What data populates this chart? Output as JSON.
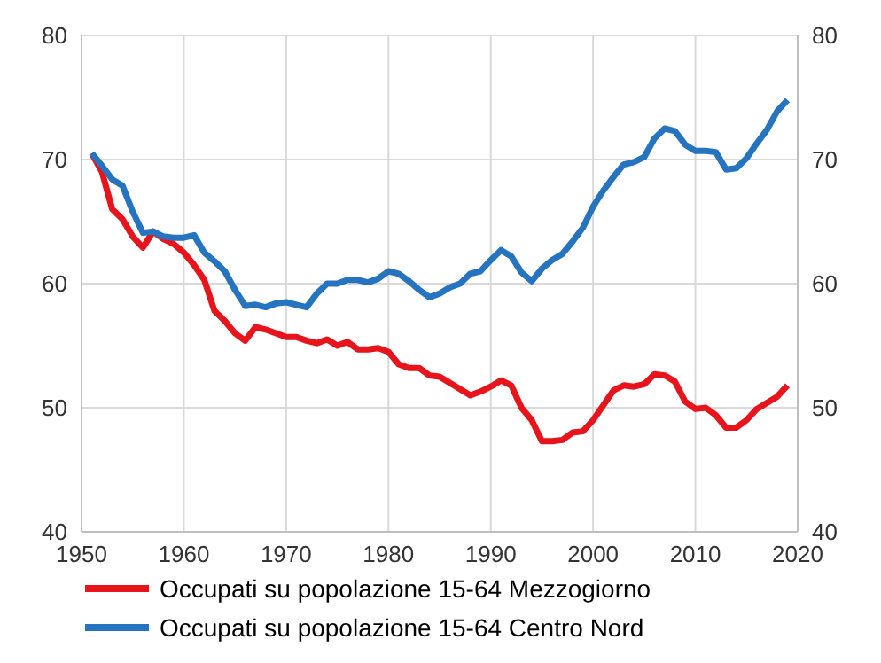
{
  "chart_data": {
    "type": "line",
    "x": [
      1951,
      1952,
      1953,
      1954,
      1955,
      1956,
      1957,
      1958,
      1959,
      1960,
      1961,
      1962,
      1963,
      1964,
      1965,
      1966,
      1967,
      1968,
      1969,
      1970,
      1971,
      1972,
      1973,
      1974,
      1975,
      1976,
      1977,
      1978,
      1979,
      1980,
      1981,
      1982,
      1983,
      1984,
      1985,
      1986,
      1987,
      1988,
      1989,
      1990,
      1991,
      1992,
      1993,
      1994,
      1995,
      1996,
      1997,
      1998,
      1999,
      2000,
      2001,
      2002,
      2003,
      2004,
      2005,
      2006,
      2007,
      2008,
      2009,
      2010,
      2011,
      2012,
      2013,
      2014,
      2015,
      2016,
      2017,
      2018,
      2019
    ],
    "series": [
      {
        "name": "Occupati su popolazione 15-64 Mezzogiorno",
        "color": "#e8141b",
        "values": [
          70.5,
          69,
          66,
          65.2,
          63.8,
          62.9,
          64.2,
          63.6,
          63.2,
          62.5,
          61.5,
          60.3,
          57.8,
          57,
          56,
          55.4,
          56.5,
          56.3,
          56,
          55.7,
          55.7,
          55.4,
          55.2,
          55.5,
          55,
          55.3,
          54.7,
          54.7,
          54.8,
          54.5,
          53.5,
          53.2,
          53.2,
          52.6,
          52.5,
          52,
          51.5,
          51,
          51.3,
          51.7,
          52.2,
          51.8,
          50,
          49,
          47.3,
          47.3,
          47.4,
          48,
          48.1,
          49,
          50.2,
          51.4,
          51.8,
          51.7,
          51.9,
          52.7,
          52.6,
          52.1,
          50.5,
          49.9,
          50,
          49.4,
          48.4,
          48.4,
          49,
          49.9,
          50.4,
          50.9,
          51.8
        ]
      },
      {
        "name": "Occupati su popolazione 15-64 Centro Nord",
        "color": "#2673c0",
        "values": [
          70.5,
          69.5,
          68.4,
          67.9,
          65.8,
          64.1,
          64.2,
          63.8,
          63.7,
          63.7,
          63.9,
          62.5,
          61.8,
          61,
          59.5,
          58.2,
          58.3,
          58.1,
          58.4,
          58.5,
          58.3,
          58.1,
          59.2,
          60,
          60,
          60.3,
          60.3,
          60.1,
          60.4,
          61,
          60.8,
          60.2,
          59.5,
          58.9,
          59.2,
          59.7,
          60,
          60.8,
          61,
          61.9,
          62.7,
          62.2,
          60.9,
          60.2,
          61.2,
          61.9,
          62.4,
          63.4,
          64.5,
          66.2,
          67.5,
          68.6,
          69.6,
          69.8,
          70.2,
          71.7,
          72.5,
          72.3,
          71.2,
          70.7,
          70.7,
          70.6,
          69.2,
          69.3,
          70.1,
          71.3,
          72.4,
          73.9,
          74.8
        ]
      }
    ],
    "xlim": [
      1950,
      2020
    ],
    "xticks": [
      1950,
      1960,
      1970,
      1980,
      1990,
      2000,
      2010,
      2020
    ],
    "ylim": [
      40,
      80
    ],
    "yticks": [
      40,
      50,
      60,
      70,
      80
    ],
    "y2lim": [
      40,
      80
    ],
    "y2ticks": [
      40,
      50,
      60,
      70,
      80
    ],
    "grid": true,
    "legend": "bottom",
    "marker": "none",
    "line_style": "solid"
  }
}
